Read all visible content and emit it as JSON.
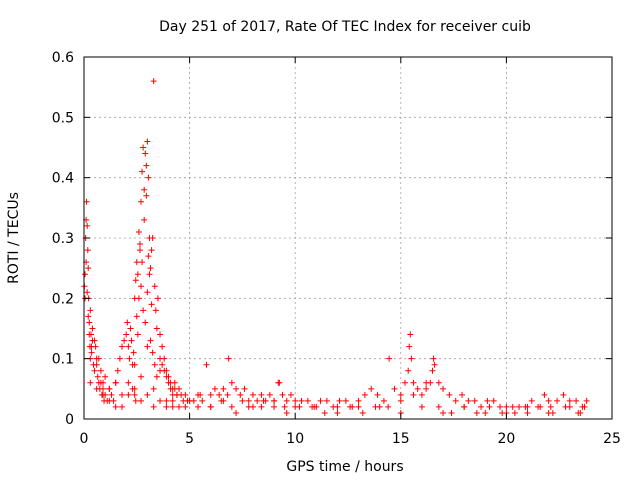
{
  "chart_data": {
    "type": "scatter",
    "title": "Day 251 of 2017, Rate Of TEC Index for receiver cuib",
    "xlabel": "GPS time / hours",
    "ylabel": "ROTI / TECUs",
    "xlim": [
      0,
      25
    ],
    "ylim": [
      0,
      0.6
    ],
    "xticks": [
      0,
      5,
      10,
      15,
      20,
      25
    ],
    "xtick_labels": [
      "0",
      "5",
      "10",
      "15",
      "20",
      "25"
    ],
    "yticks": [
      0,
      0.1,
      0.2,
      0.3,
      0.4,
      0.5,
      0.6
    ],
    "ytick_labels": [
      "0",
      "0.1",
      "0.2",
      "0.3",
      "0.4",
      "0.5",
      "0.6"
    ],
    "grid": true,
    "marker": "plus",
    "color": "#ff0000",
    "series": [
      {
        "x": [
          0.02,
          0.05,
          0.08,
          0.1,
          0.12,
          0.15,
          0.18,
          0.2,
          0.22,
          0.25,
          0.28,
          0.3,
          0.33,
          0.36,
          0.4,
          0.45,
          0.5,
          0.55,
          0.6,
          0.65,
          0.7,
          0.75,
          0.8,
          0.85,
          0.9,
          0.95,
          1.0,
          1.1,
          1.2,
          1.3,
          1.4,
          1.5,
          1.6,
          1.7,
          1.8,
          1.9,
          2.0,
          2.05,
          2.1,
          2.15,
          2.2,
          2.25,
          2.3,
          2.35,
          2.4,
          2.45,
          2.5,
          2.55,
          2.6,
          2.65,
          2.7,
          2.75,
          2.8,
          2.85,
          2.9,
          2.95,
          3.0,
          3.05,
          3.1,
          3.15,
          3.2,
          3.25,
          3.3,
          3.35,
          3.4,
          3.45,
          3.5,
          3.6,
          3.7,
          3.8,
          3.9,
          4.0,
          4.1,
          4.2,
          4.3,
          4.4,
          4.5,
          4.6,
          4.7,
          4.8,
          4.9,
          5.0,
          5.2,
          5.4,
          5.6,
          5.8,
          6.0,
          6.2,
          6.4,
          6.6,
          6.8,
          6.85,
          7.0,
          7.2,
          7.4,
          7.6,
          7.8,
          8.0,
          8.2,
          8.4,
          8.6,
          8.8,
          9.0,
          9.2,
          9.25,
          9.4,
          9.6,
          9.8,
          10.0,
          10.3,
          10.6,
          10.9,
          11.2,
          11.5,
          11.8,
          12.1,
          12.4,
          12.7,
          13.0,
          13.3,
          13.6,
          13.9,
          14.2,
          14.45,
          14.7,
          15.0,
          15.2,
          15.35,
          15.4,
          15.45,
          15.5,
          15.6,
          15.8,
          16.0,
          16.2,
          16.4,
          16.5,
          16.55,
          16.6,
          16.8,
          17.0,
          17.3,
          17.6,
          17.9,
          18.2,
          18.5,
          18.8,
          19.1,
          19.4,
          19.7,
          20.0,
          20.3,
          20.6,
          20.9,
          21.2,
          21.5,
          21.8,
          22.0,
          22.1,
          22.4,
          22.7,
          23.0,
          23.3,
          23.6,
          23.8,
          0.05,
          0.1,
          0.15,
          0.2,
          0.25,
          0.3,
          0.35,
          0.4,
          0.5,
          0.6,
          0.7,
          0.8,
          0.9,
          1.0,
          1.2,
          1.5,
          1.8,
          2.1,
          2.4,
          2.7,
          3.0,
          3.3,
          3.6,
          3.9,
          4.2,
          4.5,
          5.0,
          5.5,
          6.0,
          6.5,
          7.0,
          7.5,
          8.0,
          8.5,
          9.0,
          9.5,
          10.0,
          11.0,
          12.0,
          13.0,
          14.0,
          15.0,
          16.0,
          17.0,
          18.0,
          19.0,
          20.0,
          21.0,
          22.0,
          23.0,
          23.5,
          0.3,
          0.6,
          0.9,
          1.2,
          1.5,
          1.8,
          2.1,
          2.4,
          2.7,
          3.0,
          3.3,
          3.6,
          3.9,
          4.2,
          4.8,
          5.4,
          6.0,
          6.6,
          7.2,
          7.8,
          8.4,
          9.0,
          9.6,
          10.2,
          10.8,
          11.4,
          12.0,
          12.6,
          13.2,
          13.8,
          14.4,
          15.0,
          15.6,
          16.2,
          16.8,
          17.4,
          18.0,
          18.6,
          19.2,
          19.8,
          20.4,
          21.0,
          21.6,
          22.2,
          22.8,
          23.4,
          23.7,
          2.6,
          2.7,
          2.8,
          2.9,
          3.0,
          3.1,
          3.2,
          2.75,
          2.85,
          2.95,
          3.05,
          2.5,
          2.55,
          2.65,
          3.15,
          3.25,
          3.35,
          3.45,
          2.3,
          2.4,
          2.45,
          3.6,
          3.7,
          3.8,
          3.9,
          4.0,
          4.1,
          4.2,
          4.3,
          4.4
        ],
        "y": [
          0.22,
          0.24,
          0.3,
          0.33,
          0.36,
          0.32,
          0.28,
          0.25,
          0.2,
          0.16,
          0.12,
          0.1,
          0.14,
          0.11,
          0.13,
          0.09,
          0.08,
          0.12,
          0.1,
          0.07,
          0.06,
          0.05,
          0.06,
          0.04,
          0.05,
          0.03,
          0.04,
          0.03,
          0.05,
          0.04,
          0.03,
          0.06,
          0.08,
          0.1,
          0.12,
          0.13,
          0.14,
          0.16,
          0.12,
          0.1,
          0.15,
          0.13,
          0.09,
          0.11,
          0.2,
          0.23,
          0.26,
          0.24,
          0.31,
          0.28,
          0.36,
          0.41,
          0.45,
          0.38,
          0.44,
          0.42,
          0.46,
          0.4,
          0.3,
          0.25,
          0.28,
          0.3,
          0.56,
          0.22,
          0.18,
          0.15,
          0.2,
          0.14,
          0.12,
          0.1,
          0.08,
          0.07,
          0.06,
          0.05,
          0.06,
          0.04,
          0.05,
          0.04,
          0.03,
          0.04,
          0.03,
          0.03,
          0.03,
          0.04,
          0.03,
          0.09,
          0.04,
          0.05,
          0.04,
          0.05,
          0.04,
          0.1,
          0.06,
          0.05,
          0.04,
          0.05,
          0.03,
          0.04,
          0.03,
          0.04,
          0.03,
          0.04,
          0.03,
          0.06,
          0.06,
          0.04,
          0.03,
          0.04,
          0.03,
          0.03,
          0.03,
          0.02,
          0.03,
          0.03,
          0.02,
          0.03,
          0.03,
          0.02,
          0.03,
          0.04,
          0.05,
          0.04,
          0.03,
          0.1,
          0.05,
          0.04,
          0.06,
          0.08,
          0.12,
          0.14,
          0.1,
          0.06,
          0.05,
          0.04,
          0.05,
          0.06,
          0.08,
          0.1,
          0.09,
          0.06,
          0.05,
          0.04,
          0.03,
          0.04,
          0.03,
          0.03,
          0.02,
          0.03,
          0.03,
          0.02,
          0.02,
          0.02,
          0.02,
          0.02,
          0.03,
          0.02,
          0.04,
          0.03,
          0.02,
          0.03,
          0.04,
          0.03,
          0.03,
          0.02,
          0.03,
          0.2,
          0.26,
          0.21,
          0.17,
          0.14,
          0.18,
          0.12,
          0.15,
          0.13,
          0.09,
          0.1,
          0.08,
          0.06,
          0.07,
          0.05,
          0.06,
          0.04,
          0.04,
          0.05,
          0.03,
          0.04,
          0.02,
          0.03,
          0.02,
          0.03,
          0.02,
          0.03,
          0.04,
          0.02,
          0.03,
          0.02,
          0.03,
          0.02,
          0.03,
          0.02,
          0.02,
          0.02,
          0.02,
          0.01,
          0.02,
          0.02,
          0.01,
          0.02,
          0.01,
          0.02,
          0.01,
          0.01,
          0.02,
          0.01,
          0.02,
          0.01,
          0.06,
          0.05,
          0.04,
          0.03,
          0.02,
          0.02,
          0.06,
          0.09,
          0.07,
          0.12,
          0.05,
          0.08,
          0.03,
          0.02,
          0.02,
          0.02,
          0.02,
          0.03,
          0.01,
          0.02,
          0.02,
          0.03,
          0.01,
          0.02,
          0.02,
          0.01,
          0.02,
          0.02,
          0.01,
          0.02,
          0.02,
          0.03,
          0.04,
          0.06,
          0.02,
          0.01,
          0.02,
          0.01,
          0.02,
          0.01,
          0.01,
          0.01,
          0.02,
          0.01,
          0.02,
          0.01,
          0.02,
          0.2,
          0.22,
          0.18,
          0.16,
          0.21,
          0.24,
          0.19,
          0.26,
          0.33,
          0.37,
          0.27,
          0.17,
          0.14,
          0.29,
          0.13,
          0.11,
          0.09,
          0.07,
          0.05,
          0.04,
          0.03,
          0.1,
          0.09,
          0.08,
          0.07,
          0.06,
          0.05,
          0.04,
          0.05,
          0.04
        ]
      }
    ]
  }
}
